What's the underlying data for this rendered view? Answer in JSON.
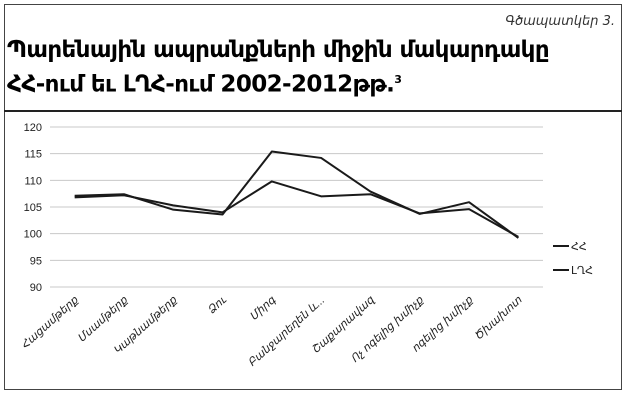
{
  "figure_label": "Գծապատկեր 3.",
  "title_line1": "Պարենային ապրանքների միջին մակարդակը",
  "title_line2": "ՀՀ-ում եւ ԼՂՀ-ում 2002-2012թթ.",
  "title_footnote": "3",
  "chart_data": {
    "type": "line",
    "categories": [
      "Հացամթերք",
      "Մսամթերք",
      "Կաթնամթերք",
      "Ձու",
      "Միրգ",
      "Բանջարեղեն և...",
      "Շաքարավազ",
      "Ոչ ոգելից խմիչք",
      "ոգելից խմիչք",
      "Ծխախոտ"
    ],
    "series": [
      {
        "name": "ՀՀ",
        "values": [
          106.8,
          107.2,
          105.3,
          104.0,
          109.8,
          107.0,
          107.4,
          103.8,
          104.6,
          99.4
        ]
      },
      {
        "name": "ԼՂՀ",
        "values": [
          107.1,
          107.4,
          104.5,
          103.6,
          115.4,
          114.2,
          107.9,
          103.7,
          105.9,
          99.2
        ]
      }
    ],
    "y_ticks": [
      "90",
      "95",
      "100",
      "105",
      "110",
      "115",
      "120"
    ],
    "ylim": [
      90,
      120
    ],
    "grid": true,
    "legend_position": "right",
    "colors": {
      "line": "#1a1a1a",
      "grid": "#c8c8c8"
    }
  }
}
